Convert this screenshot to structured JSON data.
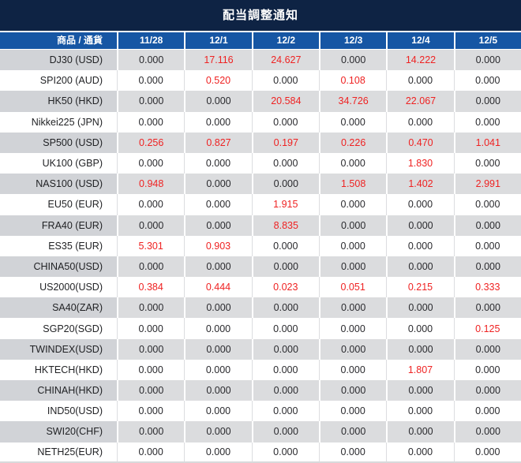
{
  "title": "配当調整通知",
  "colors": {
    "title_bg": "#0e2344",
    "header_bg": "#1656a4",
    "row_alt_bg": "#dbdcde",
    "row_alt_label_bg": "#d1d3d7",
    "value_black": "#2a2a2e",
    "value_red": "#ef2222"
  },
  "table": {
    "columns": [
      "商品 / 通貨",
      "11/28",
      "12/1",
      "12/2",
      "12/3",
      "12/4",
      "12/5"
    ],
    "rows": [
      {
        "label": "DJ30 (USD)",
        "values": [
          "0.000",
          "17.116",
          "24.627",
          "0.000",
          "14.222",
          "0.000"
        ],
        "red": [
          false,
          true,
          true,
          false,
          true,
          false
        ]
      },
      {
        "label": "SPI200 (AUD)",
        "values": [
          "0.000",
          "0.520",
          "0.000",
          "0.108",
          "0.000",
          "0.000"
        ],
        "red": [
          false,
          true,
          false,
          true,
          false,
          false
        ]
      },
      {
        "label": "HK50 (HKD)",
        "values": [
          "0.000",
          "0.000",
          "20.584",
          "34.726",
          "22.067",
          "0.000"
        ],
        "red": [
          false,
          false,
          true,
          true,
          true,
          false
        ]
      },
      {
        "label": "Nikkei225 (JPN)",
        "values": [
          "0.000",
          "0.000",
          "0.000",
          "0.000",
          "0.000",
          "0.000"
        ],
        "red": [
          false,
          false,
          false,
          false,
          false,
          false
        ]
      },
      {
        "label": "SP500 (USD)",
        "values": [
          "0.256",
          "0.827",
          "0.197",
          "0.226",
          "0.470",
          "1.041"
        ],
        "red": [
          true,
          true,
          true,
          true,
          true,
          true
        ]
      },
      {
        "label": "UK100 (GBP)",
        "values": [
          "0.000",
          "0.000",
          "0.000",
          "0.000",
          "1.830",
          "0.000"
        ],
        "red": [
          false,
          false,
          false,
          false,
          true,
          false
        ]
      },
      {
        "label": "NAS100 (USD)",
        "values": [
          "0.948",
          "0.000",
          "0.000",
          "1.508",
          "1.402",
          "2.991"
        ],
        "red": [
          true,
          false,
          false,
          true,
          true,
          true
        ]
      },
      {
        "label": "EU50 (EUR)",
        "values": [
          "0.000",
          "0.000",
          "1.915",
          "0.000",
          "0.000",
          "0.000"
        ],
        "red": [
          false,
          false,
          true,
          false,
          false,
          false
        ]
      },
      {
        "label": "FRA40 (EUR)",
        "values": [
          "0.000",
          "0.000",
          "8.835",
          "0.000",
          "0.000",
          "0.000"
        ],
        "red": [
          false,
          false,
          true,
          false,
          false,
          false
        ]
      },
      {
        "label": "ES35 (EUR)",
        "values": [
          "5.301",
          "0.903",
          "0.000",
          "0.000",
          "0.000",
          "0.000"
        ],
        "red": [
          true,
          true,
          false,
          false,
          false,
          false
        ]
      },
      {
        "label": "CHINA50(USD)",
        "values": [
          "0.000",
          "0.000",
          "0.000",
          "0.000",
          "0.000",
          "0.000"
        ],
        "red": [
          false,
          false,
          false,
          false,
          false,
          false
        ]
      },
      {
        "label": "US2000(USD)",
        "values": [
          "0.384",
          "0.444",
          "0.023",
          "0.051",
          "0.215",
          "0.333"
        ],
        "red": [
          true,
          true,
          true,
          true,
          true,
          true
        ]
      },
      {
        "label": "SA40(ZAR)",
        "values": [
          "0.000",
          "0.000",
          "0.000",
          "0.000",
          "0.000",
          "0.000"
        ],
        "red": [
          false,
          false,
          false,
          false,
          false,
          false
        ]
      },
      {
        "label": "SGP20(SGD)",
        "values": [
          "0.000",
          "0.000",
          "0.000",
          "0.000",
          "0.000",
          "0.125"
        ],
        "red": [
          false,
          false,
          false,
          false,
          false,
          true
        ]
      },
      {
        "label": "TWINDEX(USD)",
        "values": [
          "0.000",
          "0.000",
          "0.000",
          "0.000",
          "0.000",
          "0.000"
        ],
        "red": [
          false,
          false,
          false,
          false,
          false,
          false
        ]
      },
      {
        "label": "HKTECH(HKD)",
        "values": [
          "0.000",
          "0.000",
          "0.000",
          "0.000",
          "1.807",
          "0.000"
        ],
        "red": [
          false,
          false,
          false,
          false,
          true,
          false
        ]
      },
      {
        "label": "CHINAH(HKD)",
        "values": [
          "0.000",
          "0.000",
          "0.000",
          "0.000",
          "0.000",
          "0.000"
        ],
        "red": [
          false,
          false,
          false,
          false,
          false,
          false
        ]
      },
      {
        "label": "IND50(USD)",
        "values": [
          "0.000",
          "0.000",
          "0.000",
          "0.000",
          "0.000",
          "0.000"
        ],
        "red": [
          false,
          false,
          false,
          false,
          false,
          false
        ]
      },
      {
        "label": "SWI20(CHF)",
        "values": [
          "0.000",
          "0.000",
          "0.000",
          "0.000",
          "0.000",
          "0.000"
        ],
        "red": [
          false,
          false,
          false,
          false,
          false,
          false
        ]
      },
      {
        "label": "NETH25(EUR)",
        "values": [
          "0.000",
          "0.000",
          "0.000",
          "0.000",
          "0.000",
          "0.000"
        ],
        "red": [
          false,
          false,
          false,
          false,
          false,
          false
        ]
      }
    ]
  }
}
